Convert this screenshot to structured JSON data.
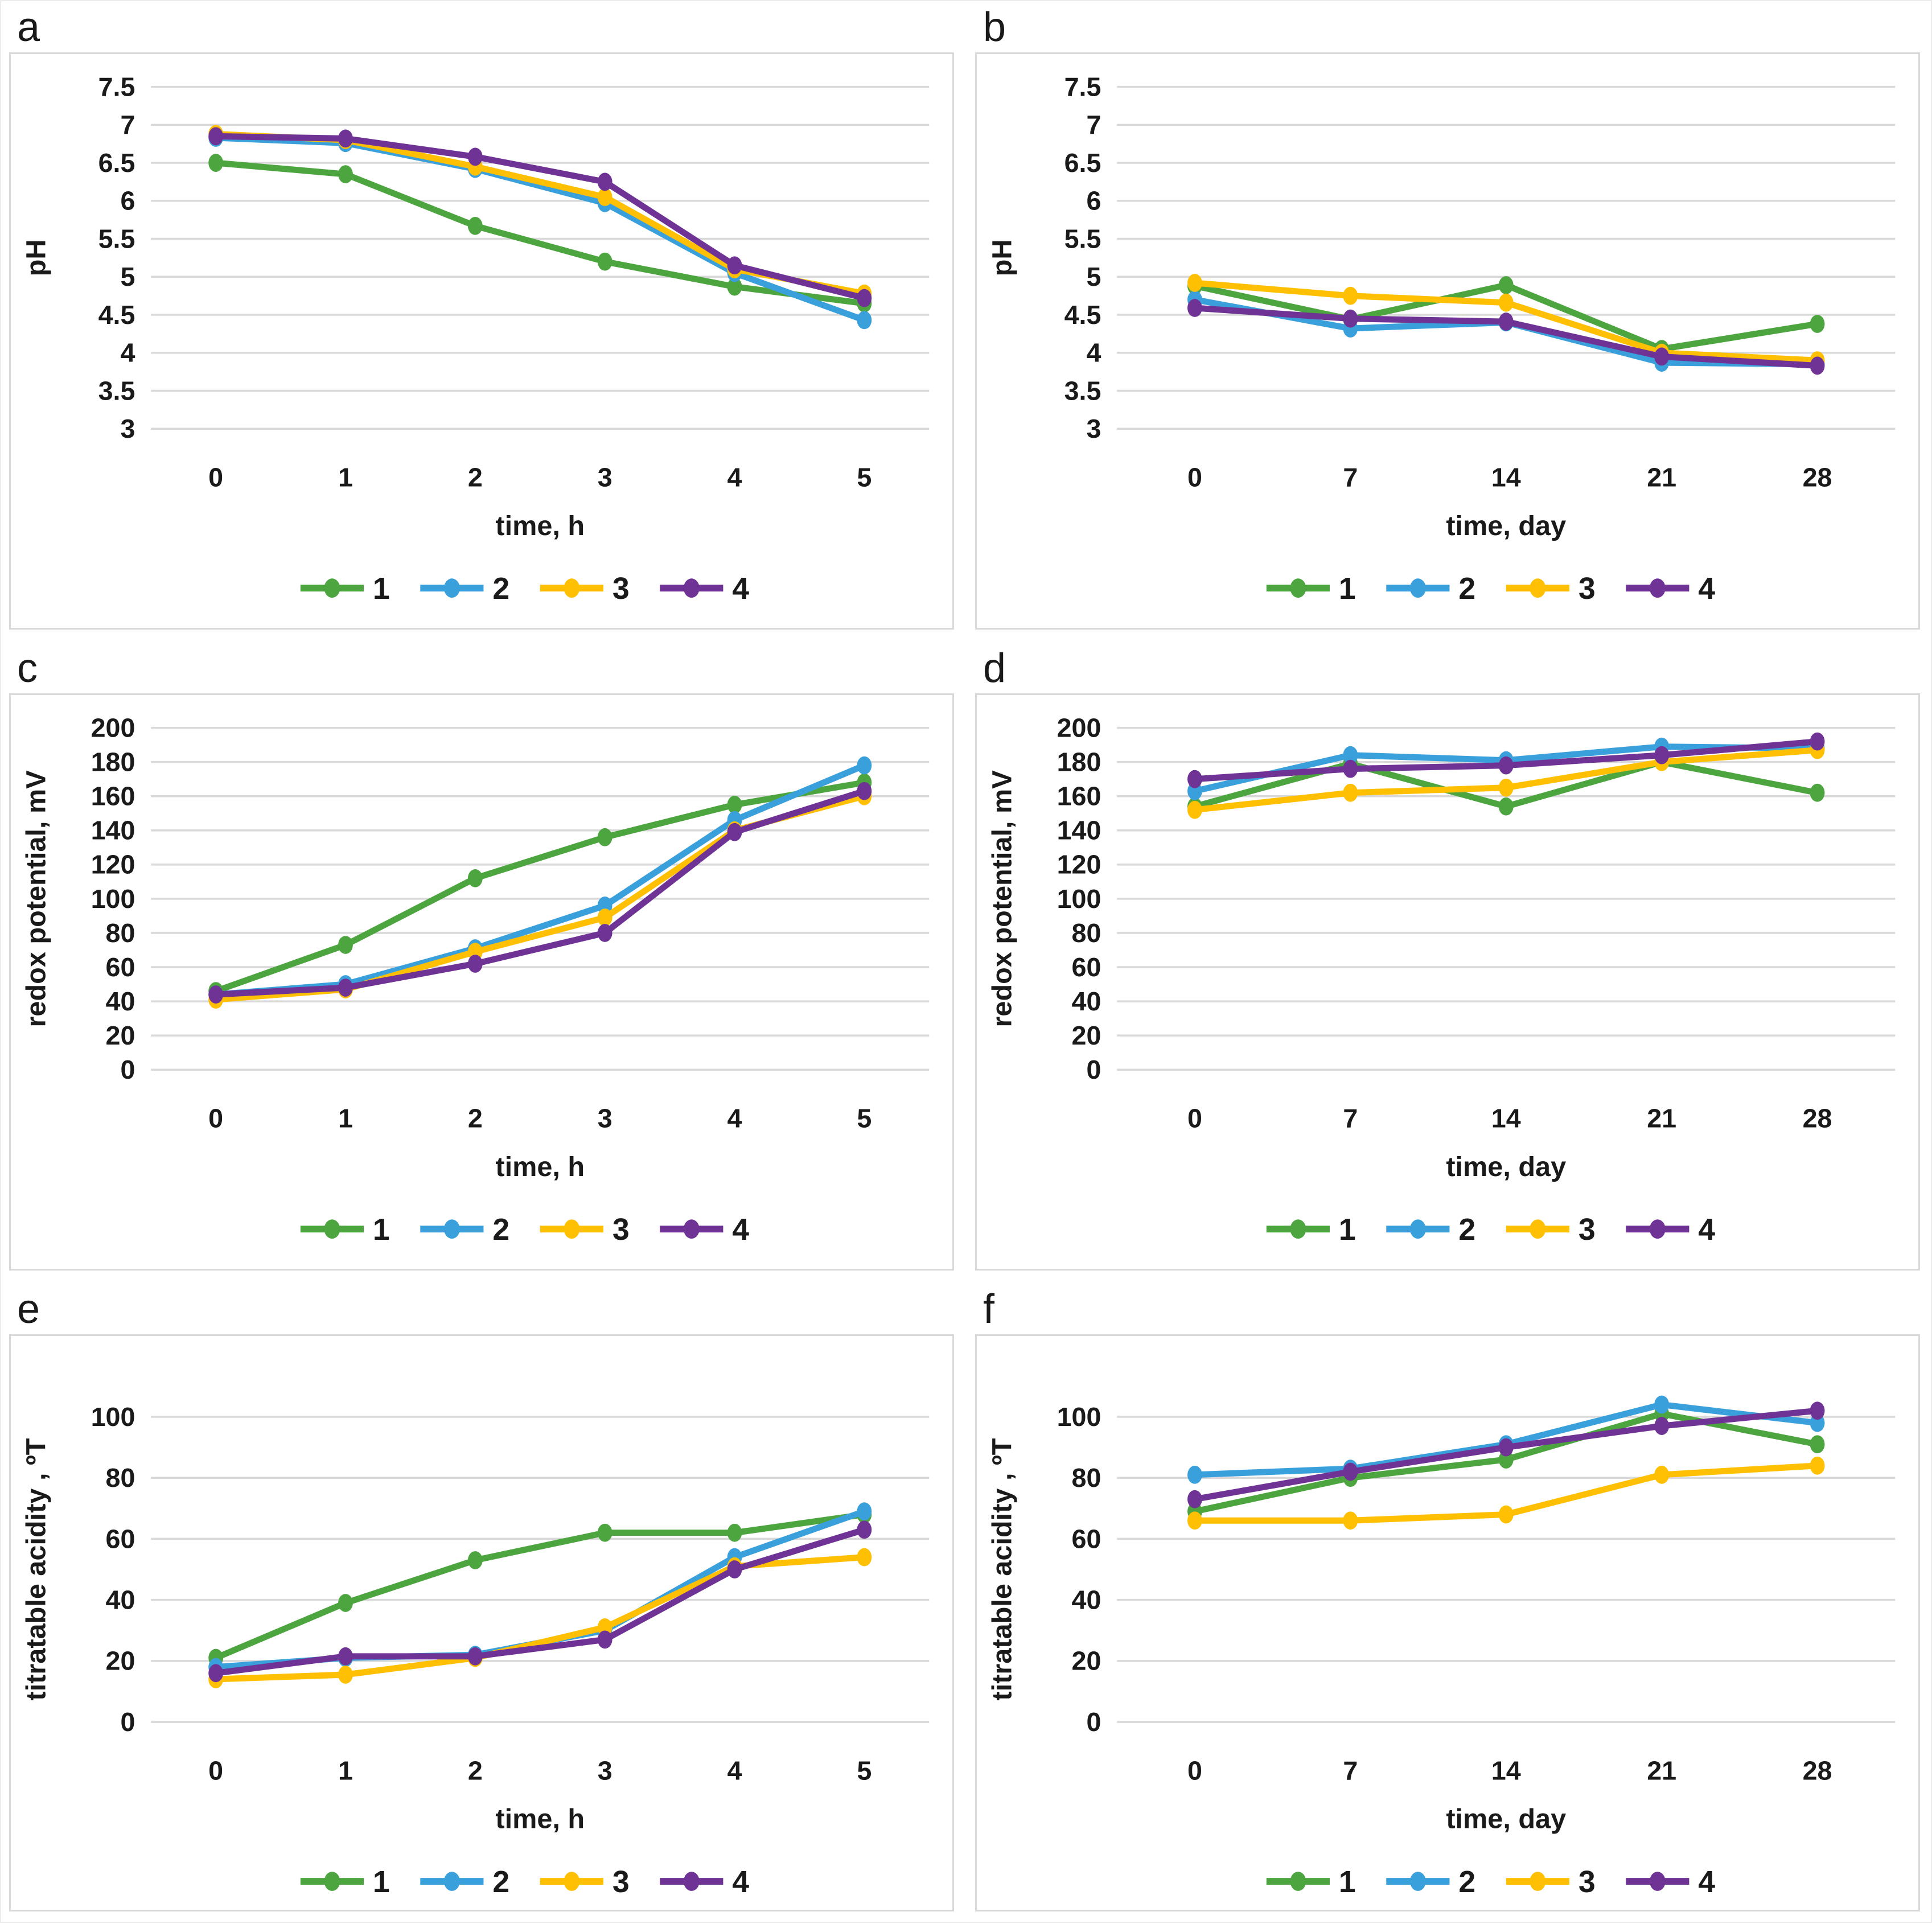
{
  "figure_title": "",
  "panel_letters": [
    "a",
    "b",
    "c",
    "d",
    "e",
    "f"
  ],
  "palette": {
    "series1_green": "#4CA53F",
    "series2_blue": "#3AA0DC",
    "series3_yellow": "#FFC003",
    "series4_purple": "#6F3395",
    "gridline": "#d9d9d9",
    "text": "#1a1a1a"
  },
  "chart_data": [
    {
      "id": "a",
      "letter": "a",
      "type": "line",
      "ylabel": "pH",
      "xlabel": "time, h",
      "x_labels": [
        "0",
        "1",
        "2",
        "3",
        "4",
        "5"
      ],
      "y_ticks": [
        7.5,
        7,
        6.5,
        6,
        5.5,
        5,
        4.5,
        4,
        3.5,
        3
      ],
      "ylim": [
        3,
        7.5
      ],
      "grid": true,
      "legend_position": "bottom",
      "legend": [
        "1",
        "2",
        "3",
        "4"
      ],
      "series": [
        {
          "name": "1",
          "color": "#4CA53F",
          "values": [
            6.5,
            6.35,
            5.67,
            5.2,
            4.87,
            4.65
          ]
        },
        {
          "name": "2",
          "color": "#3AA0DC",
          "values": [
            6.83,
            6.76,
            6.42,
            5.97,
            5.05,
            4.43
          ]
        },
        {
          "name": "3",
          "color": "#FFC003",
          "values": [
            6.88,
            6.8,
            6.45,
            6.05,
            5.1,
            4.78
          ]
        },
        {
          "name": "4",
          "color": "#6F3395",
          "values": [
            6.85,
            6.82,
            6.58,
            6.25,
            5.15,
            4.72
          ]
        }
      ]
    },
    {
      "id": "b",
      "letter": "b",
      "type": "line",
      "ylabel": "pH",
      "xlabel": "time, day",
      "x_labels": [
        "0",
        "7",
        "14",
        "21",
        "28"
      ],
      "y_ticks": [
        7.5,
        7,
        6.5,
        6,
        5.5,
        5,
        4.5,
        4,
        3.5,
        3
      ],
      "ylim": [
        3,
        7.5
      ],
      "grid": true,
      "legend_position": "bottom",
      "legend": [
        "1",
        "2",
        "3",
        "4"
      ],
      "series": [
        {
          "name": "1",
          "color": "#4CA53F",
          "values": [
            4.88,
            4.44,
            4.89,
            4.05,
            4.38
          ]
        },
        {
          "name": "2",
          "color": "#3AA0DC",
          "values": [
            4.7,
            4.32,
            4.4,
            3.87,
            3.85
          ]
        },
        {
          "name": "3",
          "color": "#FFC003",
          "values": [
            4.92,
            4.75,
            4.66,
            4.0,
            3.9
          ]
        },
        {
          "name": "4",
          "color": "#6F3395",
          "values": [
            4.59,
            4.45,
            4.41,
            3.95,
            3.83
          ]
        }
      ]
    },
    {
      "id": "c",
      "letter": "c",
      "type": "line",
      "ylabel": "redox potential, mV",
      "xlabel": "time, h",
      "x_labels": [
        "0",
        "1",
        "2",
        "3",
        "4",
        "5"
      ],
      "y_ticks": [
        200,
        180,
        160,
        140,
        120,
        100,
        80,
        60,
        40,
        20,
        0
      ],
      "ylim": [
        0,
        200
      ],
      "grid": true,
      "legend_position": "bottom",
      "legend": [
        "1",
        "2",
        "3",
        "4"
      ],
      "series": [
        {
          "name": "1",
          "color": "#4CA53F",
          "values": [
            46,
            73,
            112,
            136,
            155,
            168
          ]
        },
        {
          "name": "2",
          "color": "#3AA0DC",
          "values": [
            44,
            50,
            71,
            96,
            146,
            178
          ]
        },
        {
          "name": "3",
          "color": "#FFC003",
          "values": [
            41,
            47,
            69,
            89,
            140,
            160
          ]
        },
        {
          "name": "4",
          "color": "#6F3395",
          "values": [
            44,
            48,
            62,
            80,
            139,
            163
          ]
        }
      ]
    },
    {
      "id": "d",
      "letter": "d",
      "type": "line",
      "ylabel": "redox potential, mV",
      "xlabel": "time, day",
      "x_labels": [
        "0",
        "7",
        "14",
        "21",
        "28"
      ],
      "y_ticks": [
        200,
        180,
        160,
        140,
        120,
        100,
        80,
        60,
        40,
        20,
        0
      ],
      "ylim": [
        0,
        200
      ],
      "grid": true,
      "legend_position": "bottom",
      "legend": [
        "1",
        "2",
        "3",
        "4"
      ],
      "series": [
        {
          "name": "1",
          "color": "#4CA53F",
          "values": [
            154,
            179,
            154,
            180,
            162
          ]
        },
        {
          "name": "2",
          "color": "#3AA0DC",
          "values": [
            163,
            184,
            181,
            189,
            188
          ]
        },
        {
          "name": "3",
          "color": "#FFC003",
          "values": [
            152,
            162,
            165,
            180,
            187
          ]
        },
        {
          "name": "4",
          "color": "#6F3395",
          "values": [
            170,
            176,
            178,
            184,
            192
          ]
        }
      ]
    },
    {
      "id": "e",
      "letter": "e",
      "type": "line",
      "ylabel": "titratable acidity , ºT",
      "xlabel": "time, h",
      "x_labels": [
        "0",
        "1",
        "2",
        "3",
        "4",
        "5"
      ],
      "y_ticks": [
        100,
        80,
        60,
        40,
        20,
        0
      ],
      "ylim": [
        0,
        100
      ],
      "grid": true,
      "legend_position": "bottom",
      "legend": [
        "1",
        "2",
        "3",
        "4"
      ],
      "series": [
        {
          "name": "1",
          "color": "#4CA53F",
          "values": [
            21,
            39,
            53,
            62,
            62,
            68
          ]
        },
        {
          "name": "2",
          "color": "#3AA0DC",
          "values": [
            18,
            21,
            22,
            30,
            54,
            69
          ]
        },
        {
          "name": "3",
          "color": "#FFC003",
          "values": [
            14,
            15.5,
            21,
            31,
            51,
            54
          ]
        },
        {
          "name": "4",
          "color": "#6F3395",
          "values": [
            16,
            21.5,
            21.5,
            27,
            50,
            63
          ]
        }
      ]
    },
    {
      "id": "f",
      "letter": "f",
      "type": "line",
      "ylabel": "titratable acidity , ºT",
      "xlabel": "time, day",
      "x_labels": [
        "0",
        "7",
        "14",
        "21",
        "28"
      ],
      "y_ticks": [
        100,
        80,
        60,
        40,
        20,
        0
      ],
      "ylim": [
        0,
        100
      ],
      "grid": true,
      "legend_position": "bottom",
      "legend": [
        "1",
        "2",
        "3",
        "4"
      ],
      "series": [
        {
          "name": "1",
          "color": "#4CA53F",
          "values": [
            69,
            80,
            86,
            101,
            91
          ]
        },
        {
          "name": "2",
          "color": "#3AA0DC",
          "values": [
            81,
            83,
            91,
            104,
            98
          ]
        },
        {
          "name": "3",
          "color": "#FFC003",
          "values": [
            66,
            66,
            68,
            81,
            84
          ]
        },
        {
          "name": "4",
          "color": "#6F3395",
          "values": [
            73,
            82,
            90,
            97,
            102
          ]
        }
      ]
    }
  ]
}
